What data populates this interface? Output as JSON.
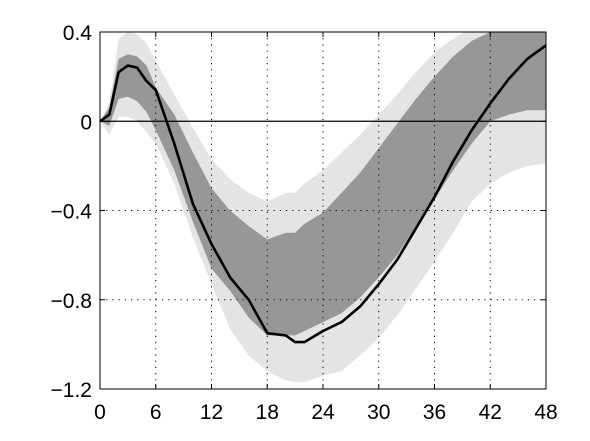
{
  "chart_data": {
    "type": "area",
    "title": "",
    "xlabel": "",
    "ylabel": "",
    "xlim": [
      0,
      48
    ],
    "ylim": [
      -1.2,
      0.4
    ],
    "x_ticks": [
      0,
      6,
      12,
      18,
      24,
      30,
      36,
      42,
      48
    ],
    "y_ticks": [
      -1.2,
      -0.8,
      -0.4,
      0,
      0.4
    ],
    "x_tick_labels": [
      "0",
      "6",
      "12",
      "18",
      "24",
      "30",
      "36",
      "42",
      "48"
    ],
    "y_tick_labels": [
      "−1.2",
      "−0.8",
      "−0.4",
      "0",
      "0.4"
    ],
    "grid": "dotted",
    "zero_line": true,
    "x": [
      0,
      1,
      2,
      3,
      4,
      5,
      6,
      8,
      10,
      12,
      14,
      16,
      18,
      20,
      21,
      22,
      24,
      26,
      28,
      30,
      32,
      34,
      36,
      38,
      40,
      42,
      44,
      46,
      48
    ],
    "median": [
      0,
      0.03,
      0.22,
      0.25,
      0.24,
      0.18,
      0.14,
      -0.1,
      -0.37,
      -0.55,
      -0.7,
      -0.8,
      -0.95,
      -0.96,
      -0.99,
      -0.99,
      -0.94,
      -0.9,
      -0.83,
      -0.73,
      -0.62,
      -0.48,
      -0.34,
      -0.18,
      -0.04,
      0.08,
      0.19,
      0.28,
      0.34
    ],
    "band_68": {
      "lower": [
        0,
        -0.02,
        0.1,
        0.11,
        0.09,
        0.04,
        -0.04,
        -0.22,
        -0.45,
        -0.66,
        -0.76,
        -0.88,
        -0.96,
        -0.96,
        -0.96,
        -0.94,
        -0.9,
        -0.86,
        -0.79,
        -0.7,
        -0.6,
        -0.47,
        -0.35,
        -0.22,
        -0.1,
        0.0,
        0.03,
        0.05,
        0.05
      ],
      "upper": [
        0,
        0.06,
        0.28,
        0.3,
        0.29,
        0.25,
        0.15,
        0.03,
        -0.14,
        -0.3,
        -0.4,
        -0.47,
        -0.53,
        -0.5,
        -0.5,
        -0.46,
        -0.41,
        -0.32,
        -0.23,
        -0.12,
        -0.01,
        0.1,
        0.2,
        0.29,
        0.36,
        0.4,
        0.42,
        0.44,
        0.45
      ]
    },
    "band_90": {
      "lower": [
        0,
        -0.06,
        0.02,
        0.02,
        0.0,
        -0.05,
        -0.1,
        -0.28,
        -0.52,
        -0.73,
        -0.93,
        -1.05,
        -1.12,
        -1.16,
        -1.17,
        -1.17,
        -1.14,
        -1.12,
        -1.05,
        -0.97,
        -0.87,
        -0.75,
        -0.63,
        -0.5,
        -0.36,
        -0.28,
        -0.23,
        -0.2,
        -0.19
      ],
      "upper": [
        0,
        0.08,
        0.37,
        0.4,
        0.39,
        0.35,
        0.27,
        0.12,
        -0.03,
        -0.17,
        -0.26,
        -0.32,
        -0.36,
        -0.32,
        -0.32,
        -0.28,
        -0.22,
        -0.14,
        -0.06,
        0.03,
        0.12,
        0.22,
        0.31,
        0.37,
        0.42,
        0.46,
        0.48,
        0.5,
        0.52
      ]
    },
    "colors": {
      "band_90": "#e4e4e4",
      "band_68": "#979797",
      "median": "#000000",
      "zero_line": "#000000",
      "grid": "#000000",
      "axes": "#000000"
    }
  }
}
